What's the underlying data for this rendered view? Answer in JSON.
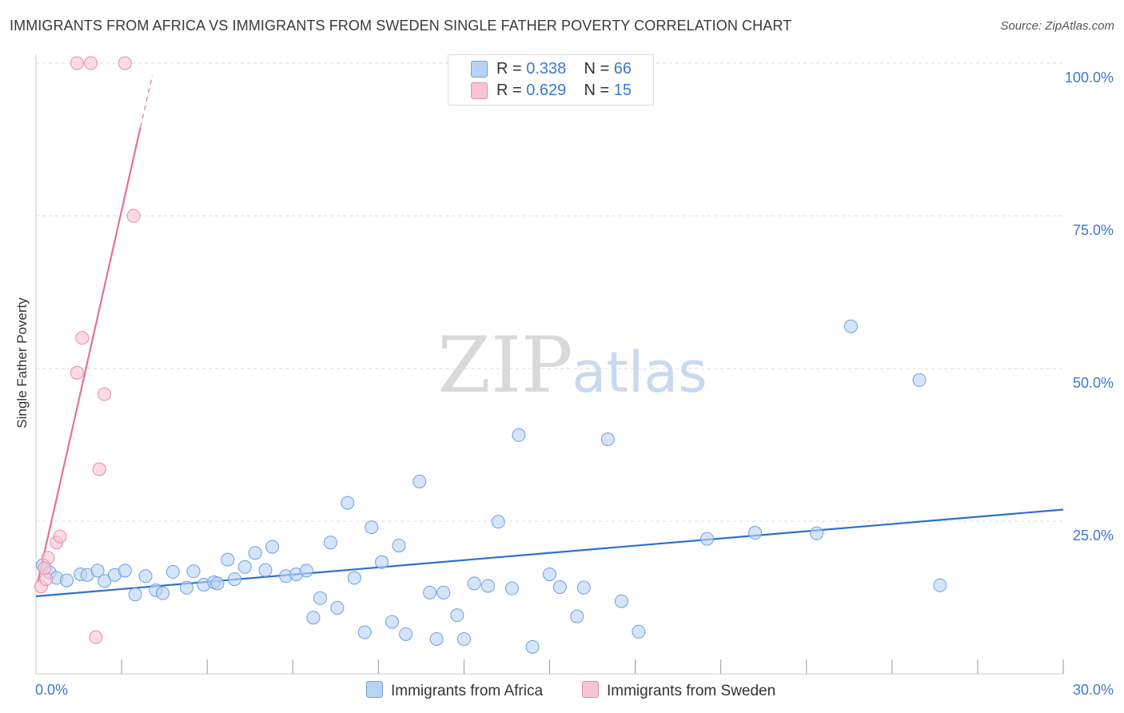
{
  "title": "IMMIGRANTS FROM AFRICA VS IMMIGRANTS FROM SWEDEN SINGLE FATHER POVERTY CORRELATION CHART",
  "source": "Source: ZipAtlas.com",
  "watermark": {
    "zip": "ZIP",
    "atlas": "atlas"
  },
  "legend_top": [
    {
      "r_label": "R =",
      "r_value": "0.338",
      "n_label": "N =",
      "n_value": "66"
    },
    {
      "r_label": "R =",
      "r_value": "0.629",
      "n_label": "N =",
      "n_value": "15"
    }
  ],
  "legend_bottom": [
    {
      "label": "Immigrants from Africa"
    },
    {
      "label": "Immigrants from Sweden"
    }
  ],
  "colors": {
    "africa_fill": "#b9d3f5",
    "africa_stroke": "#6f9fde",
    "africa_line": "#2f6fd1",
    "sweden_fill": "#f8c5d3",
    "sweden_stroke": "#e98aa7",
    "sweden_line": "#e2729a",
    "tick_label": "#3b78d0",
    "grid": "#dcdcdc"
  },
  "chart_data": {
    "type": "scatter",
    "xlabel": "",
    "ylabel": "Single Father Poverty",
    "xlim": [
      0,
      30
    ],
    "ylim": [
      0,
      100
    ],
    "x_tick_labels": [
      {
        "value": 0,
        "label": "0.0%"
      },
      {
        "value": 30,
        "label": "30.0%"
      }
    ],
    "y_tick_labels": [
      {
        "value": 25,
        "label": "25.0%"
      },
      {
        "value": 50,
        "label": "50.0%"
      },
      {
        "value": 75,
        "label": "75.0%"
      },
      {
        "value": 100,
        "label": "100.0%"
      }
    ],
    "series": [
      {
        "name": "Immigrants from Africa",
        "R": 0.338,
        "N": 66,
        "trend": {
          "x0": 0,
          "y0": 12.7,
          "x1": 30,
          "y1": 26.9
        },
        "points": [
          [
            0.2,
            17.8
          ],
          [
            0.4,
            16.6
          ],
          [
            0.6,
            15.7
          ],
          [
            0.9,
            15.3
          ],
          [
            1.3,
            16.3
          ],
          [
            1.5,
            16.2
          ],
          [
            1.8,
            16.9
          ],
          [
            2.0,
            15.2
          ],
          [
            2.3,
            16.2
          ],
          [
            2.6,
            16.9
          ],
          [
            2.9,
            13.0
          ],
          [
            3.2,
            16.0
          ],
          [
            3.5,
            13.7
          ],
          [
            3.7,
            13.2
          ],
          [
            4.0,
            16.7
          ],
          [
            4.4,
            14.1
          ],
          [
            4.6,
            16.8
          ],
          [
            4.9,
            14.6
          ],
          [
            5.2,
            15.0
          ],
          [
            5.3,
            14.8
          ],
          [
            5.6,
            18.7
          ],
          [
            5.8,
            15.5
          ],
          [
            6.1,
            17.5
          ],
          [
            6.4,
            19.8
          ],
          [
            6.7,
            17.0
          ],
          [
            6.9,
            20.8
          ],
          [
            7.3,
            16.0
          ],
          [
            7.6,
            16.3
          ],
          [
            7.9,
            16.9
          ],
          [
            8.1,
            9.2
          ],
          [
            8.3,
            12.4
          ],
          [
            8.6,
            21.5
          ],
          [
            8.8,
            10.8
          ],
          [
            9.1,
            28.0
          ],
          [
            9.3,
            15.7
          ],
          [
            9.6,
            6.8
          ],
          [
            9.8,
            24.0
          ],
          [
            10.1,
            18.3
          ],
          [
            10.4,
            8.5
          ],
          [
            10.6,
            21.0
          ],
          [
            10.8,
            6.5
          ],
          [
            11.2,
            31.5
          ],
          [
            11.5,
            13.3
          ],
          [
            11.7,
            5.7
          ],
          [
            11.9,
            13.3
          ],
          [
            12.3,
            9.6
          ],
          [
            12.5,
            5.7
          ],
          [
            12.8,
            14.8
          ],
          [
            13.2,
            14.4
          ],
          [
            13.5,
            24.9
          ],
          [
            13.9,
            14.0
          ],
          [
            14.1,
            39.1
          ],
          [
            14.5,
            4.4
          ],
          [
            15.0,
            16.3
          ],
          [
            15.3,
            14.2
          ],
          [
            15.8,
            9.4
          ],
          [
            16.0,
            14.1
          ],
          [
            16.7,
            38.4
          ],
          [
            17.1,
            11.9
          ],
          [
            17.6,
            6.9
          ],
          [
            19.6,
            22.1
          ],
          [
            21.0,
            23.1
          ],
          [
            22.8,
            23.0
          ],
          [
            23.8,
            56.9
          ],
          [
            25.8,
            48.1
          ],
          [
            26.4,
            14.5
          ]
        ]
      },
      {
        "name": "Immigrants from Sweden",
        "R": 0.629,
        "N": 15,
        "trend": {
          "x0": 0.05,
          "y0": 15.0,
          "x1": 3.05,
          "y1": 89.5
        },
        "trend_extension": {
          "x0": 3.05,
          "y0": 89.5,
          "x1": 3.4,
          "y1": 98.0
        },
        "points": [
          [
            0.15,
            14.3
          ],
          [
            0.3,
            15.5
          ],
          [
            0.35,
            19.0
          ],
          [
            0.6,
            21.5
          ],
          [
            0.7,
            22.5
          ],
          [
            1.2,
            49.3
          ],
          [
            1.35,
            55.0
          ],
          [
            1.6,
            100.0
          ],
          [
            1.85,
            33.5
          ],
          [
            1.75,
            6.0
          ],
          [
            2.0,
            45.8
          ],
          [
            2.6,
            100.0
          ],
          [
            2.85,
            75.0
          ],
          [
            1.2,
            100.0
          ],
          [
            0.25,
            17.3
          ]
        ]
      }
    ]
  }
}
